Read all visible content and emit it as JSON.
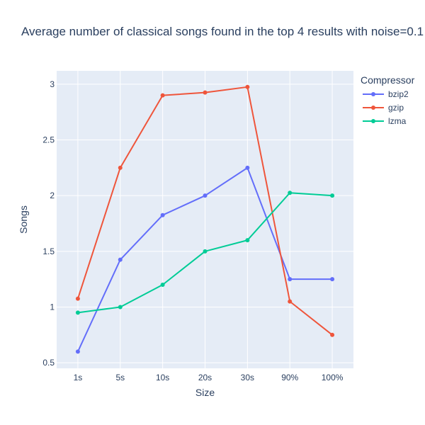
{
  "chart_data": {
    "type": "line",
    "title": "Average number of classical songs found in the top 4 results with noise=0.1",
    "xlabel": "Size",
    "ylabel": "Songs",
    "categories": [
      "1s",
      "5s",
      "10s",
      "20s",
      "30s",
      "90%",
      "100%"
    ],
    "yticks": [
      "0.5",
      "1",
      "1.5",
      "2",
      "2.5",
      "3"
    ],
    "ylim": [
      0.45,
      3.12
    ],
    "grid": true,
    "legend_title": "Compressor",
    "legend_position": "top-right",
    "series": [
      {
        "name": "bzip2",
        "color": "#636efa",
        "values": [
          0.6,
          1.425,
          1.825,
          2.0,
          2.25,
          1.25,
          1.25
        ]
      },
      {
        "name": "gzip",
        "color": "#ef553b",
        "values": [
          1.075,
          2.25,
          2.9,
          2.925,
          2.975,
          1.05,
          0.75
        ]
      },
      {
        "name": "lzma",
        "color": "#00cc96",
        "values": [
          0.95,
          1.0,
          1.2,
          1.5,
          1.6,
          2.025,
          2.0
        ]
      }
    ]
  }
}
